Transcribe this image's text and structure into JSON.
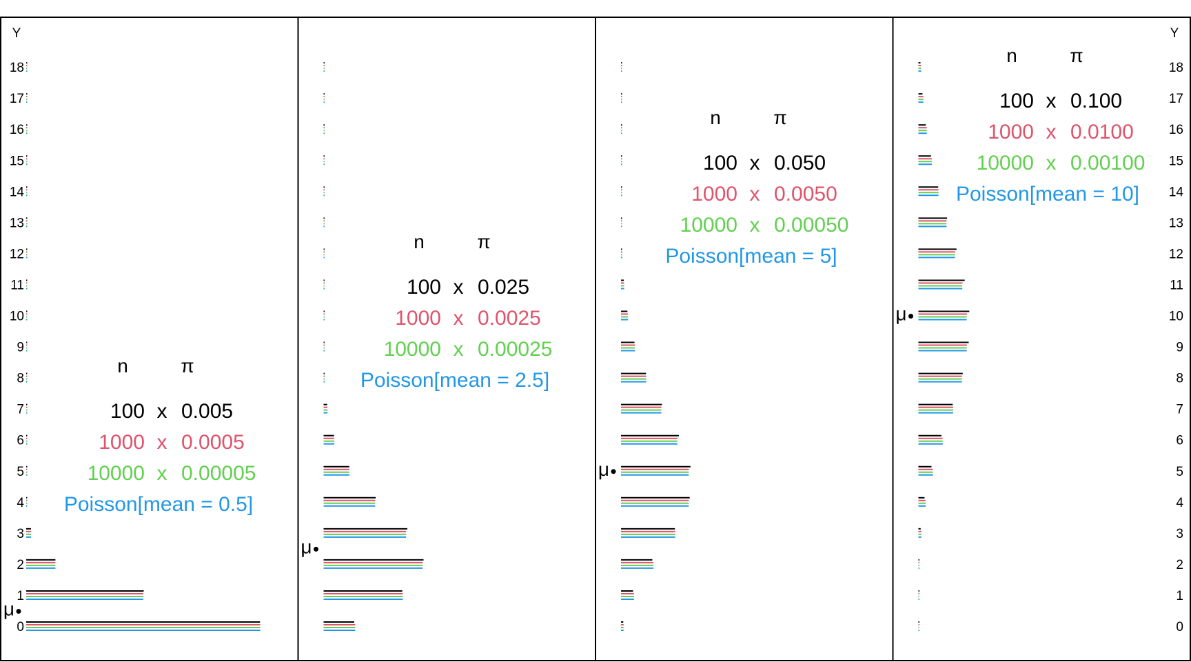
{
  "colors": {
    "series": [
      "#000000",
      "#df536b",
      "#61d04f",
      "#2297e6"
    ],
    "frame": "#000000"
  },
  "chart_data": {
    "type": "bar",
    "orientation": "horizontal",
    "y_axis_label": "Y",
    "y_ticks": [
      "0",
      "1",
      "2",
      "3",
      "4",
      "5",
      "6",
      "7",
      "8",
      "9",
      "10",
      "11",
      "12",
      "13",
      "14",
      "15",
      "16",
      "17",
      "18"
    ],
    "ylim": [
      0,
      18
    ],
    "mu_label": "μ",
    "legend_headers": {
      "n": "n",
      "pi": "π",
      "times": "x"
    },
    "panels": [
      {
        "mean": 0.5,
        "legend": {
          "rows": [
            {
              "n": "100",
              "pi": "0.005"
            },
            {
              "n": "1000",
              "pi": "0.0005"
            },
            {
              "n": "10000",
              "pi": "0.00005"
            }
          ],
          "poisson": "Poisson[mean = 0.5]"
        },
        "series": [
          {
            "values": [
              0.6058,
              0.3044,
              0.0757,
              0.0124,
              0.0015,
              0.0001,
              0,
              0,
              0,
              0,
              0,
              0,
              0,
              0,
              0,
              0,
              0,
              0,
              0
            ]
          },
          {
            "values": [
              0.6064,
              0.3033,
              0.0758,
              0.0126,
              0.0016,
              0.0002,
              0,
              0,
              0,
              0,
              0,
              0,
              0,
              0,
              0,
              0,
              0,
              0,
              0
            ]
          },
          {
            "values": [
              0.6065,
              0.3033,
              0.0758,
              0.0126,
              0.0016,
              0.0002,
              0,
              0,
              0,
              0,
              0,
              0,
              0,
              0,
              0,
              0,
              0,
              0,
              0
            ]
          },
          {
            "values": [
              0.6065,
              0.3033,
              0.0758,
              0.0126,
              0.0016,
              0.0002,
              0,
              0,
              0,
              0,
              0,
              0,
              0,
              0,
              0,
              0,
              0,
              0,
              0
            ]
          }
        ]
      },
      {
        "mean": 2.5,
        "legend": {
          "rows": [
            {
              "n": "100",
              "pi": "0.025"
            },
            {
              "n": "1000",
              "pi": "0.0025"
            },
            {
              "n": "10000",
              "pi": "0.00025"
            }
          ],
          "poisson": "Poisson[mean = 2.5]"
        },
        "series": [
          {
            "values": [
              0.0795,
              0.2039,
              0.2589,
              0.217,
              0.135,
              0.0665,
              0.027,
              0.0093,
              0.0028,
              0.0007,
              0.0002,
              0,
              0,
              0,
              0,
              0,
              0,
              0,
              0
            ]
          },
          {
            "values": [
              0.0818,
              0.2052,
              0.2567,
              0.2138,
              0.1334,
              0.0666,
              0.0277,
              0.0099,
              0.0031,
              0.0008,
              0.0002,
              0,
              0,
              0,
              0,
              0,
              0,
              0,
              0
            ]
          },
          {
            "values": [
              0.0821,
              0.2052,
              0.2565,
              0.2138,
              0.1336,
              0.0668,
              0.0278,
              0.0099,
              0.0031,
              0.0009,
              0.0002,
              0,
              0,
              0,
              0,
              0,
              0,
              0,
              0
            ]
          },
          {
            "values": [
              0.0821,
              0.2052,
              0.2565,
              0.2138,
              0.1336,
              0.0668,
              0.0278,
              0.0099,
              0.0031,
              0.0009,
              0.0002,
              0,
              0,
              0,
              0,
              0,
              0,
              0,
              0
            ]
          }
        ]
      },
      {
        "mean": 5,
        "legend": {
          "rows": [
            {
              "n": "100",
              "pi": "0.050"
            },
            {
              "n": "1000",
              "pi": "0.0050"
            },
            {
              "n": "10000",
              "pi": "0.00050"
            }
          ],
          "poisson": "Poisson[mean = 5]"
        },
        "series": [
          {
            "values": [
              0.0059,
              0.0312,
              0.0812,
              0.1396,
              0.1781,
              0.18,
              0.15,
              0.106,
              0.0649,
              0.0349,
              0.0167,
              0.0072,
              0.0028,
              0.001,
              0.0003,
              0.0001,
              0,
              0,
              0
            ]
          },
          {
            "values": [
              0.0067,
              0.0334,
              0.0839,
              0.1403,
              0.1757,
              0.1759,
              0.1466,
              0.1046,
              0.0652,
              0.0361,
              0.018,
              0.0081,
              0.0034,
              0.0013,
              0.0005,
              0.0002,
              0,
              0,
              0
            ]
          },
          {
            "values": [
              0.0067,
              0.0337,
              0.0842,
              0.1404,
              0.1755,
              0.1755,
              0.1462,
              0.1044,
              0.0653,
              0.0362,
              0.0181,
              0.0082,
              0.0034,
              0.0013,
              0.0005,
              0.0002,
              0,
              0,
              0
            ]
          },
          {
            "values": [
              0.0067,
              0.0337,
              0.0842,
              0.1404,
              0.1755,
              0.1755,
              0.1462,
              0.1044,
              0.0653,
              0.0363,
              0.0181,
              0.0082,
              0.0034,
              0.0013,
              0.0005,
              0.0002,
              0,
              0,
              0
            ]
          }
        ]
      },
      {
        "mean": 10,
        "legend": {
          "rows": [
            {
              "n": "100",
              "pi": "0.100"
            },
            {
              "n": "1000",
              "pi": "0.0100"
            },
            {
              "n": "10000",
              "pi": "0.00100"
            }
          ],
          "poisson": "Poisson[mean = 10]"
        },
        "series": [
          {
            "values": [
              0.0,
              0.0003,
              0.0016,
              0.0059,
              0.0159,
              0.0339,
              0.0596,
              0.0889,
              0.1148,
              0.1304,
              0.1319,
              0.1199,
              0.0988,
              0.0743,
              0.0513,
              0.0327,
              0.0193,
              0.0106,
              0.0054
            ]
          },
          {
            "values": [
              0.0,
              0.0004,
              0.0022,
              0.0074,
              0.0186,
              0.0375,
              0.0627,
              0.09,
              0.1128,
              0.1256,
              0.1257,
              0.1143,
              0.0952,
              0.0731,
              0.052,
              0.0346,
              0.0216,
              0.0127,
              0.007
            ]
          },
          {
            "values": [
              0.0,
              0.0005,
              0.0023,
              0.0076,
              0.0189,
              0.0378,
              0.063,
              0.0901,
              0.1126,
              0.1251,
              0.1251,
              0.1137,
              0.0948,
              0.0729,
              0.0521,
              0.0347,
              0.0217,
              0.0128,
              0.0071
            ]
          },
          {
            "values": [
              0.0,
              0.0005,
              0.0023,
              0.0076,
              0.0189,
              0.0378,
              0.0631,
              0.0901,
              0.1126,
              0.1251,
              0.1251,
              0.1137,
              0.0948,
              0.0729,
              0.0521,
              0.0347,
              0.0217,
              0.0128,
              0.0071
            ]
          }
        ]
      }
    ]
  }
}
